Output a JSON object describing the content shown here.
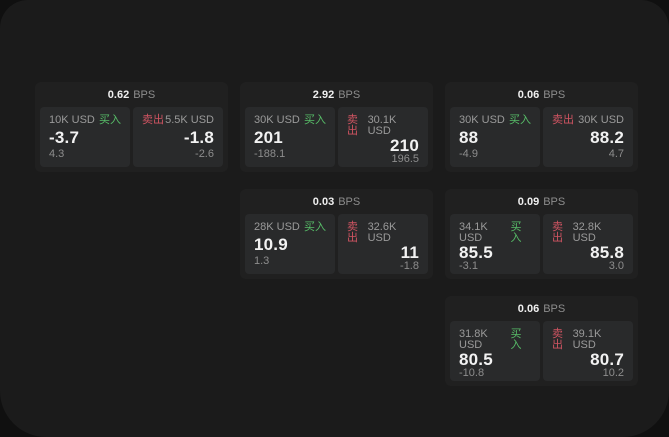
{
  "colors": {
    "backdrop": "#101010",
    "surface": "#1b1b1b",
    "card_bg": "#202020",
    "tile_bg": "#292a2b",
    "text_primary": "#f2f2f2",
    "text_secondary": "#9a9a9a",
    "buy_green": "#57bd68",
    "sell_red": "#d05462"
  },
  "labels": {
    "bps_unit": "BPS",
    "buy": "买入",
    "sell": "卖出"
  },
  "cards": [
    {
      "bps": "0.62",
      "bps_unit": "BPS",
      "buy": {
        "amount": "10K USD",
        "side_label": "买入",
        "price": "-3.7",
        "sub_value": "4.3"
      },
      "sell": {
        "side_label": "卖出",
        "amount": "5.5K USD",
        "price": "-1.8",
        "sub_value": "-2.6"
      }
    },
    {
      "bps": "2.92",
      "bps_unit": "BPS",
      "buy": {
        "amount": "30K USD",
        "side_label": "买入",
        "price": "201",
        "sub_value": "-188.1"
      },
      "sell": {
        "side_label": "卖出",
        "amount": "30.1K USD",
        "price": "210",
        "sub_value": "196.5"
      }
    },
    {
      "bps": "0.06",
      "bps_unit": "BPS",
      "buy": {
        "amount": "30K USD",
        "side_label": "买入",
        "price": "88",
        "sub_value": "-4.9"
      },
      "sell": {
        "side_label": "卖出",
        "amount": "30K USD",
        "price": "88.2",
        "sub_value": "4.7"
      }
    },
    {
      "bps": "0.03",
      "bps_unit": "BPS",
      "buy": {
        "amount": "28K USD",
        "side_label": "买入",
        "price": "10.9",
        "sub_value": "1.3"
      },
      "sell": {
        "side_label": "卖出",
        "amount": "32.6K USD",
        "price": "11",
        "sub_value": "-1.8"
      }
    },
    {
      "bps": "0.09",
      "bps_unit": "BPS",
      "buy": {
        "amount": "34.1K USD",
        "side_label": "买入",
        "price": "85.5",
        "sub_value": "-3.1"
      },
      "sell": {
        "side_label": "卖出",
        "amount": "32.8K USD",
        "price": "85.8",
        "sub_value": "3.0"
      }
    },
    {
      "bps": "0.06",
      "bps_unit": "BPS",
      "buy": {
        "amount": "31.8K USD",
        "side_label": "买入",
        "price": "80.5",
        "sub_value": "-10.8"
      },
      "sell": {
        "side_label": "卖出",
        "amount": "39.1K USD",
        "price": "80.7",
        "sub_value": "10.2"
      }
    }
  ]
}
